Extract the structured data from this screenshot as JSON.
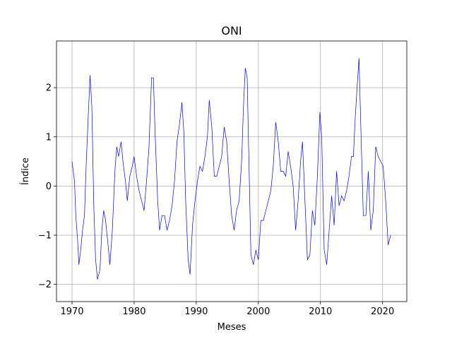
{
  "chart_data": {
    "type": "line",
    "title": "ONI",
    "xlabel": "Meses",
    "ylabel": "Índice",
    "xlim": [
      1967.5,
      2023.9
    ],
    "ylim": [
      -2.35,
      2.95
    ],
    "grid": true,
    "line_color": "#0000ff",
    "x_ticks": [
      1970,
      1980,
      1990,
      2000,
      2010,
      2020
    ],
    "x_tick_labels": [
      "1970",
      "1980",
      "1990",
      "2000",
      "2010",
      "2020"
    ],
    "y_ticks": [
      -2,
      -1,
      0,
      1,
      2
    ],
    "y_tick_labels": [
      "−2",
      "−1",
      "0",
      "1",
      "2"
    ],
    "series": [
      {
        "x": [
          1970.0,
          1970.2,
          1970.4,
          1970.6,
          1970.9,
          1971.1,
          1971.4,
          1971.7,
          1972.0,
          1972.3,
          1972.6,
          1972.9,
          1973.2,
          1973.5,
          1973.8,
          1974.1,
          1974.5,
          1974.8,
          1975.1,
          1975.4,
          1975.8,
          1976.1,
          1976.5,
          1976.9,
          1977.2,
          1977.5,
          1977.9,
          1978.2,
          1978.6,
          1978.9,
          1979.3,
          1979.7,
          1980.0,
          1980.4,
          1980.8,
          1981.2,
          1981.6,
          1982.0,
          1982.4,
          1982.8,
          1983.1,
          1983.4,
          1983.8,
          1984.1,
          1984.5,
          1984.9,
          1985.3,
          1985.7,
          1986.1,
          1986.5,
          1986.9,
          1987.3,
          1987.7,
          1988.0,
          1988.3,
          1988.7,
          1989.0,
          1989.4,
          1989.8,
          1990.2,
          1990.6,
          1991.0,
          1991.4,
          1991.8,
          1992.1,
          1992.5,
          1992.9,
          1993.3,
          1993.7,
          1994.1,
          1994.5,
          1994.9,
          1995.3,
          1995.7,
          1996.1,
          1996.5,
          1996.9,
          1997.3,
          1997.6,
          1997.9,
          1998.2,
          1998.5,
          1998.8,
          1999.2,
          1999.6,
          2000.0,
          2000.4,
          2000.8,
          2001.2,
          2001.6,
          2002.0,
          2002.4,
          2002.8,
          2003.2,
          2003.6,
          2004.0,
          2004.4,
          2004.8,
          2005.2,
          2005.6,
          2006.0,
          2006.4,
          2006.8,
          2007.1,
          2007.5,
          2007.9,
          2008.3,
          2008.7,
          2009.1,
          2009.5,
          2009.9,
          2010.2,
          2010.6,
          2011.0,
          2011.4,
          2011.8,
          2012.2,
          2012.6,
          2013.0,
          2013.4,
          2013.8,
          2014.2,
          2014.6,
          2015.0,
          2015.3,
          2015.6,
          2015.9,
          2016.2,
          2016.5,
          2016.9,
          2017.3,
          2017.7,
          2018.1,
          2018.5,
          2018.9,
          2019.3,
          2019.7,
          2020.1,
          2020.5,
          2020.9,
          2021.3
        ],
        "y": [
          0.5,
          0.3,
          0.1,
          -0.6,
          -1.1,
          -1.6,
          -1.3,
          -0.9,
          -0.6,
          0.5,
          1.4,
          2.25,
          1.6,
          -0.4,
          -1.5,
          -1.9,
          -1.7,
          -0.9,
          -0.5,
          -0.7,
          -1.2,
          -1.6,
          -0.9,
          0.3,
          0.8,
          0.6,
          0.9,
          0.5,
          0.1,
          -0.3,
          0.2,
          0.4,
          0.6,
          0.2,
          -0.1,
          -0.3,
          -0.5,
          0.1,
          0.8,
          2.2,
          2.2,
          1.0,
          -0.3,
          -0.9,
          -0.6,
          -0.6,
          -0.9,
          -0.7,
          -0.4,
          0.1,
          0.9,
          1.25,
          1.7,
          1.1,
          -0.3,
          -1.5,
          -1.8,
          -0.8,
          -0.3,
          0.1,
          0.4,
          0.3,
          0.6,
          1.0,
          1.75,
          1.2,
          0.2,
          0.2,
          0.4,
          0.6,
          1.2,
          0.9,
          0.1,
          -0.6,
          -0.9,
          -0.5,
          -0.3,
          0.5,
          1.6,
          2.4,
          2.2,
          0.4,
          -1.4,
          -1.6,
          -1.3,
          -1.5,
          -0.7,
          -0.7,
          -0.5,
          -0.3,
          -0.1,
          0.4,
          1.3,
          0.9,
          0.3,
          0.3,
          0.2,
          0.7,
          0.4,
          0.0,
          -0.9,
          -0.3,
          0.5,
          0.9,
          -0.3,
          -1.5,
          -1.4,
          -0.5,
          -0.8,
          0.2,
          1.5,
          1.0,
          -1.3,
          -1.6,
          -0.9,
          -0.2,
          -0.8,
          0.3,
          -0.4,
          -0.2,
          -0.3,
          -0.1,
          0.2,
          0.6,
          0.6,
          1.4,
          2.0,
          2.6,
          1.2,
          -0.6,
          -0.6,
          0.3,
          -0.9,
          -0.5,
          0.8,
          0.6,
          0.5,
          0.4,
          -0.3,
          -1.2,
          -1.0
        ]
      }
    ]
  }
}
